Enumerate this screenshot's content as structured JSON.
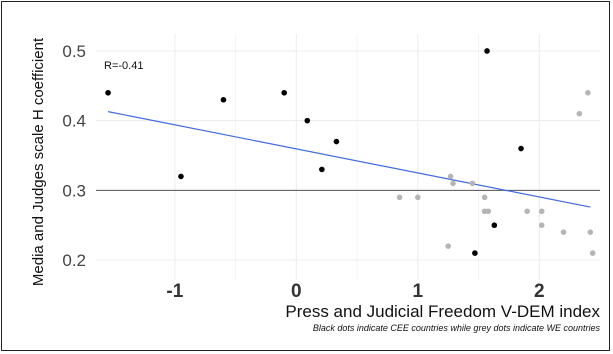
{
  "chart_data": {
    "type": "scatter",
    "title": "",
    "xlabel": "Press and Judicial Freedom V-DEM index",
    "ylabel": "Media and Judges scale H coefficient",
    "caption": "Black dots indicate CEE countries while grey dots indicate WE countries",
    "annotation": "R=-0.41",
    "xlim": [
      -1.6,
      2.5
    ],
    "ylim": [
      0.18,
      0.51
    ],
    "x_ticks": [
      -1,
      0,
      1,
      2
    ],
    "y_ticks": [
      0.2,
      0.3,
      0.4,
      0.5
    ],
    "x_tick_labels": [
      "-1",
      "0",
      "1",
      "2"
    ],
    "y_tick_labels": [
      "0.2",
      "0.3",
      "0.4",
      "0.5"
    ],
    "grid": true,
    "reference_line_y": 0.3,
    "trend_line": {
      "x": [
        -1.55,
        2.42
      ],
      "y": [
        0.413,
        0.276
      ],
      "color": "#4169e1"
    },
    "series": [
      {
        "color": "#000000",
        "points": [
          {
            "x": -1.55,
            "y": 0.44
          },
          {
            "x": -0.95,
            "y": 0.32
          },
          {
            "x": -0.6,
            "y": 0.43
          },
          {
            "x": -0.1,
            "y": 0.44
          },
          {
            "x": 0.09,
            "y": 0.4
          },
          {
            "x": 0.21,
            "y": 0.33
          },
          {
            "x": 0.33,
            "y": 0.37
          },
          {
            "x": 1.47,
            "y": 0.21
          },
          {
            "x": 1.57,
            "y": 0.5
          },
          {
            "x": 1.63,
            "y": 0.25
          },
          {
            "x": 1.85,
            "y": 0.36
          }
        ]
      },
      {
        "color": "#b5b5b5",
        "points": [
          {
            "x": 0.85,
            "y": 0.29
          },
          {
            "x": 1.0,
            "y": 0.29
          },
          {
            "x": 1.25,
            "y": 0.22
          },
          {
            "x": 1.27,
            "y": 0.32
          },
          {
            "x": 1.29,
            "y": 0.31
          },
          {
            "x": 1.45,
            "y": 0.31
          },
          {
            "x": 1.55,
            "y": 0.29
          },
          {
            "x": 1.55,
            "y": 0.27
          },
          {
            "x": 1.58,
            "y": 0.27
          },
          {
            "x": 1.9,
            "y": 0.27
          },
          {
            "x": 2.02,
            "y": 0.27
          },
          {
            "x": 2.02,
            "y": 0.25
          },
          {
            "x": 2.2,
            "y": 0.24
          },
          {
            "x": 2.33,
            "y": 0.41
          },
          {
            "x": 2.4,
            "y": 0.44
          },
          {
            "x": 2.42,
            "y": 0.24
          },
          {
            "x": 2.44,
            "y": 0.21
          }
        ]
      }
    ]
  }
}
